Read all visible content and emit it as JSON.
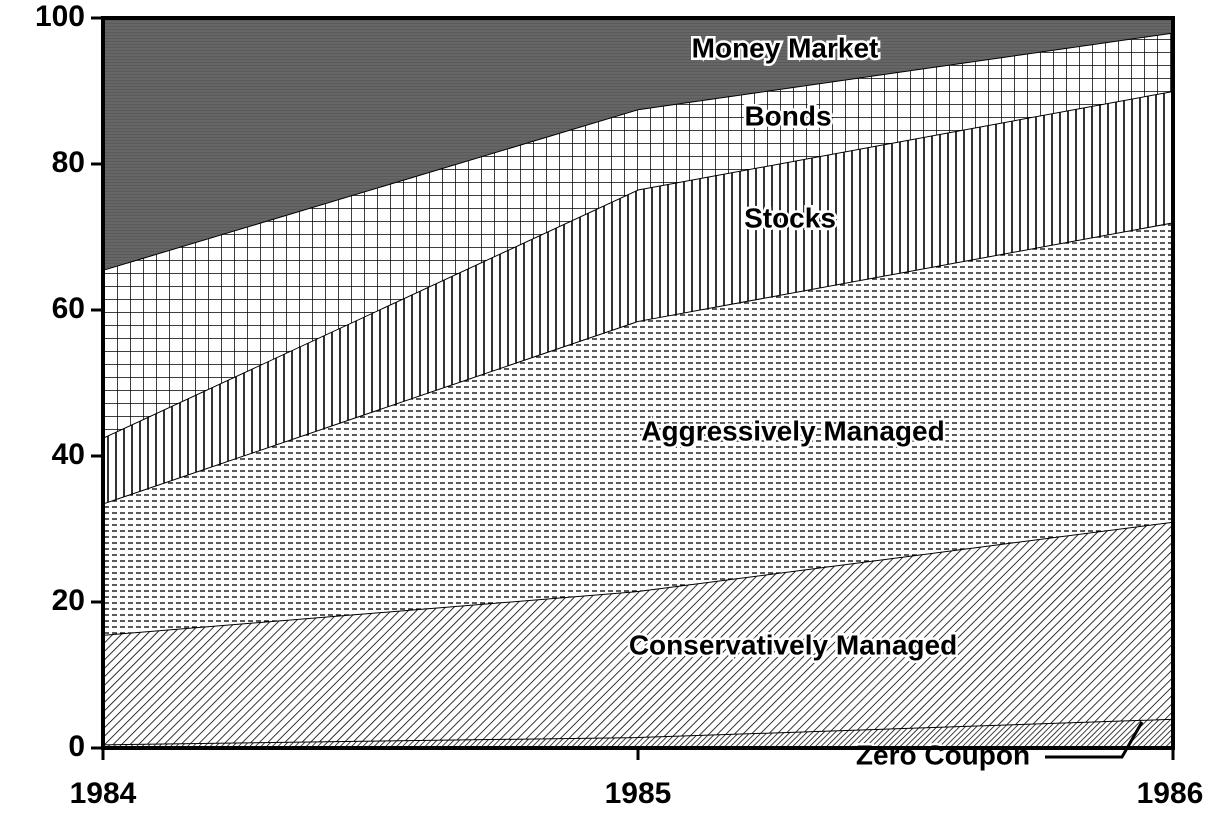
{
  "chart_data": {
    "type": "area",
    "stacked": true,
    "x": [
      1984,
      1985,
      1986
    ],
    "xlim": [
      1984,
      1986
    ],
    "xticks": [
      1984,
      1985,
      1986
    ],
    "ylim": [
      0,
      100
    ],
    "yticks": [
      0,
      20,
      40,
      60,
      80,
      100
    ],
    "series": [
      {
        "name": "Zero Coupon",
        "color": "#000000",
        "pattern": "fine-diagonal",
        "values": [
          0.5,
          1.5,
          4
        ]
      },
      {
        "name": "Conservatively Managed",
        "color": "#000000",
        "pattern": "diagonal",
        "values": [
          15,
          20,
          27
        ]
      },
      {
        "name": "Aggressively Managed",
        "color": "#000000",
        "pattern": "dashed-horizontal",
        "values": [
          18,
          37,
          41
        ]
      },
      {
        "name": "Stocks",
        "color": "#000000",
        "pattern": "vertical",
        "values": [
          9,
          18,
          18
        ]
      },
      {
        "name": "Bonds",
        "color": "#000000",
        "pattern": "grid",
        "values": [
          23,
          11,
          8
        ]
      },
      {
        "name": "Money Market",
        "color": "#000000",
        "pattern": "dark-horizontal",
        "values": [
          34.5,
          12.5,
          2
        ]
      }
    ]
  }
}
